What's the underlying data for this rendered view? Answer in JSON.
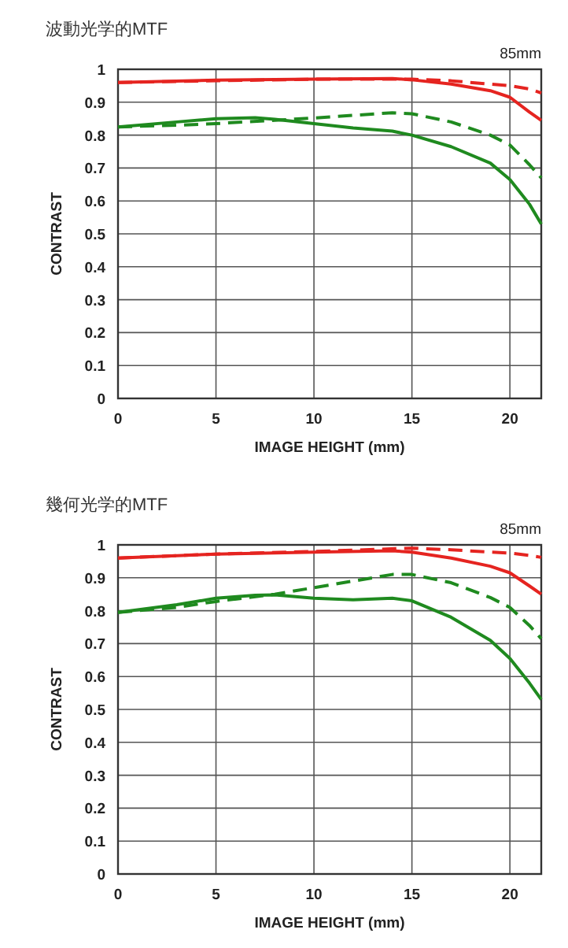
{
  "chart_data": [
    {
      "type": "line",
      "title": "波動光学的MTF",
      "annotations": [
        "85mm"
      ],
      "xlabel": "IMAGE HEIGHT (mm)",
      "ylabel": "CONTRAST",
      "xlim": [
        0,
        21.6
      ],
      "xticks": [
        0,
        5,
        10,
        15,
        20
      ],
      "ylim": [
        0,
        1
      ],
      "yticks": [
        0,
        0.1,
        0.2,
        0.3,
        0.4,
        0.5,
        0.6,
        0.7,
        0.8,
        0.9,
        1
      ],
      "grid": true,
      "series": [
        {
          "color": "#e52420",
          "line_style": "solid",
          "x": [
            0,
            5,
            10,
            14,
            15,
            17,
            19,
            20,
            21,
            21.6
          ],
          "values": [
            0.96,
            0.967,
            0.97,
            0.972,
            0.968,
            0.955,
            0.935,
            0.915,
            0.87,
            0.845
          ]
        },
        {
          "color": "#e52420",
          "line_style": "dashed",
          "x": [
            0,
            5,
            10,
            15,
            17,
            19,
            20,
            21,
            21.6
          ],
          "values": [
            0.96,
            0.965,
            0.97,
            0.97,
            0.965,
            0.955,
            0.95,
            0.94,
            0.928
          ]
        },
        {
          "color": "#1f8a1f",
          "line_style": "solid",
          "x": [
            0,
            3,
            5,
            7,
            8,
            10,
            12,
            14,
            15,
            17,
            19,
            20,
            21,
            21.6
          ],
          "values": [
            0.825,
            0.84,
            0.85,
            0.853,
            0.848,
            0.835,
            0.822,
            0.812,
            0.8,
            0.765,
            0.715,
            0.665,
            0.59,
            0.53
          ]
        },
        {
          "color": "#1f8a1f",
          "line_style": "dashed",
          "x": [
            0,
            3,
            5,
            8,
            10,
            12,
            14,
            15,
            17,
            19,
            20,
            21,
            21.6
          ],
          "values": [
            0.825,
            0.83,
            0.835,
            0.845,
            0.852,
            0.86,
            0.868,
            0.865,
            0.84,
            0.8,
            0.77,
            0.71,
            0.67
          ]
        }
      ]
    },
    {
      "type": "line",
      "title": "幾何光学的MTF",
      "annotations": [
        "85mm"
      ],
      "xlabel": "IMAGE HEIGHT (mm)",
      "ylabel": "CONTRAST",
      "xlim": [
        0,
        21.6
      ],
      "xticks": [
        0,
        5,
        10,
        15,
        20
      ],
      "ylim": [
        0,
        1
      ],
      "yticks": [
        0,
        0.1,
        0.2,
        0.3,
        0.4,
        0.5,
        0.6,
        0.7,
        0.8,
        0.9,
        1
      ],
      "grid": true,
      "series": [
        {
          "color": "#e52420",
          "line_style": "solid",
          "x": [
            0,
            5,
            10,
            14,
            15,
            17,
            19,
            20,
            21,
            21.6
          ],
          "values": [
            0.96,
            0.972,
            0.978,
            0.982,
            0.978,
            0.96,
            0.935,
            0.915,
            0.875,
            0.85
          ]
        },
        {
          "color": "#e52420",
          "line_style": "dashed",
          "x": [
            0,
            5,
            10,
            15,
            17,
            19,
            20,
            21,
            21.6
          ],
          "values": [
            0.96,
            0.972,
            0.98,
            0.99,
            0.985,
            0.978,
            0.975,
            0.968,
            0.962
          ]
        },
        {
          "color": "#1f8a1f",
          "line_style": "solid",
          "x": [
            0,
            3,
            5,
            7,
            8,
            10,
            12,
            14,
            15,
            17,
            19,
            20,
            21,
            21.6
          ],
          "values": [
            0.795,
            0.818,
            0.838,
            0.847,
            0.848,
            0.838,
            0.833,
            0.838,
            0.83,
            0.78,
            0.71,
            0.655,
            0.58,
            0.53
          ]
        },
        {
          "color": "#1f8a1f",
          "line_style": "dashed",
          "x": [
            0,
            3,
            5,
            8,
            10,
            12,
            14,
            15,
            17,
            19,
            20,
            21,
            21.6
          ],
          "values": [
            0.795,
            0.81,
            0.828,
            0.85,
            0.87,
            0.89,
            0.91,
            0.91,
            0.885,
            0.84,
            0.81,
            0.755,
            0.715
          ]
        }
      ]
    }
  ]
}
